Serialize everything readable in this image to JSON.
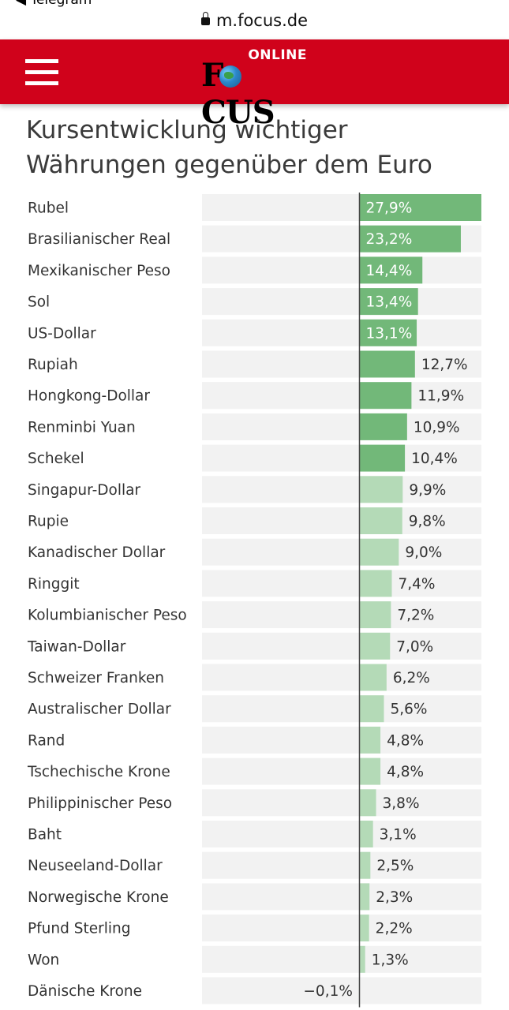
{
  "browser": {
    "back_label": "◀ Telegram",
    "url": "m.focus.de"
  },
  "header": {
    "logo_online": "ONLINE",
    "logo_focus_pre": "F",
    "logo_focus_post": "CUS",
    "brand_color": "#d0021b"
  },
  "colors": {
    "bar_dark": "#72b879",
    "bar_light": "#b4dab7",
    "track": "#f2f2f2",
    "axis": "#444444"
  },
  "chart_data": {
    "type": "bar",
    "orientation": "horizontal",
    "title": "Kursentwicklung wichtiger Währungen gegenüber dem Euro",
    "categories": [
      "Rubel",
      "Brasilianischer Real",
      "Mexikanischer Peso",
      "Sol",
      "US-Dollar",
      "Rupiah",
      "Hongkong-Dollar",
      "Renminbi Yuan",
      "Schekel",
      "Singapur-Dollar",
      "Rupie",
      "Kanadischer Dollar",
      "Ringgit",
      "Kolumbianischer Peso",
      "Taiwan-Dollar",
      "Schweizer Franken",
      "Australischer Dollar",
      "Rand",
      "Tschechische Krone",
      "Philippinischer Peso",
      "Baht",
      "Neuseeland-Dollar",
      "Norwegische Krone",
      "Pfund Sterling",
      "Won",
      "Dänische Krone"
    ],
    "values": [
      27.9,
      23.2,
      14.4,
      13.4,
      13.1,
      12.7,
      11.9,
      10.9,
      10.4,
      9.9,
      9.8,
      9.0,
      7.4,
      7.2,
      7.0,
      6.2,
      5.6,
      4.8,
      4.8,
      3.8,
      3.1,
      2.5,
      2.3,
      2.2,
      1.3,
      -0.1
    ],
    "value_labels": [
      "27,9%",
      "23,2%",
      "14,4%",
      "13,4%",
      "13,1%",
      "12,7%",
      "11,9%",
      "10,9%",
      "10,4%",
      "9,9%",
      "9,8%",
      "9,0%",
      "7,4%",
      "7,2%",
      "7,0%",
      "6,2%",
      "5,6%",
      "4,8%",
      "4,8%",
      "3,8%",
      "3,1%",
      "2,5%",
      "2,3%",
      "2,2%",
      "1,3%",
      "−0,1%"
    ],
    "shade": [
      "dark",
      "dark",
      "dark",
      "dark",
      "dark",
      "dark",
      "dark",
      "dark",
      "dark",
      "light",
      "light",
      "light",
      "light",
      "light",
      "light",
      "light",
      "light",
      "light",
      "light",
      "light",
      "light",
      "light",
      "light",
      "light",
      "light",
      "light"
    ],
    "labels_inside": [
      true,
      true,
      true,
      true,
      true,
      false,
      false,
      false,
      false,
      false,
      false,
      false,
      false,
      false,
      false,
      false,
      false,
      false,
      false,
      false,
      false,
      false,
      false,
      false,
      false,
      false
    ],
    "xlim": [
      -36.3,
      27.9
    ],
    "grid": false,
    "legend": "none"
  }
}
